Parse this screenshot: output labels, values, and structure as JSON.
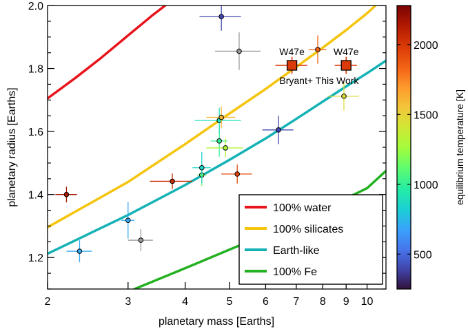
{
  "chart_data": {
    "type": "scatter",
    "xlabel": "planetary mass [Earths]",
    "ylabel": "planetary radius [Earths]",
    "xscale": "log",
    "xlim": [
      2,
      11
    ],
    "ylim": [
      1.1,
      2.0
    ],
    "xticks": [
      2,
      3,
      4,
      5,
      6,
      7,
      8,
      9,
      10
    ],
    "yticks": [
      1.2,
      1.4,
      1.6,
      1.8,
      2.0
    ],
    "grid": false,
    "legend_position": "bottom-right",
    "colorbar": {
      "label": "equilibrium temperature [K]",
      "range": [
        250,
        2280
      ],
      "ticks": [
        500,
        1000,
        1500,
        2000
      ],
      "colormap": "turbo"
    },
    "curves": [
      {
        "name": "100% water",
        "color": "#e8141c",
        "x": [
          2.0,
          2.3,
          2.6,
          3.0,
          3.4,
          3.85
        ],
        "y": [
          1.705,
          1.77,
          1.83,
          1.905,
          1.97,
          2.03
        ]
      },
      {
        "name": "100% silicates",
        "color": "#f5c40d",
        "x": [
          2.0,
          3.0,
          4.0,
          5.0,
          6.0,
          7.0,
          8.0,
          9.0,
          10.0,
          10.8
        ],
        "y": [
          1.296,
          1.44,
          1.56,
          1.657,
          1.735,
          1.805,
          1.866,
          1.922,
          1.975,
          2.02
        ]
      },
      {
        "name": "Earth-like",
        "color": "#15b2b5",
        "x": [
          2.0,
          3.0,
          4.0,
          5.0,
          6.0,
          7.0,
          8.0,
          9.0,
          10.0,
          11.0
        ],
        "y": [
          1.212,
          1.335,
          1.43,
          1.51,
          1.578,
          1.64,
          1.695,
          1.743,
          1.785,
          1.825
        ]
      },
      {
        "name": "100% Fe",
        "color": "#23b021",
        "x": [
          3.1,
          4.0,
          5.0,
          6.0,
          7.0,
          8.0,
          9.0,
          10.0,
          11.0
        ],
        "y": [
          1.1,
          1.166,
          1.225,
          1.273,
          1.315,
          1.352,
          1.388,
          1.42,
          1.475
        ]
      }
    ],
    "points": [
      {
        "x": 2.2,
        "y": 1.4,
        "xerr": 0.12,
        "yerr": 0.025,
        "teq": 2150
      },
      {
        "x": 2.35,
        "y": 1.22,
        "xerr": 0.15,
        "yerr": 0.035,
        "teq": 700
      },
      {
        "x": 3.0,
        "y": 1.318,
        "xerr": 0.1,
        "yerr": 0.058,
        "teq": 700
      },
      {
        "x": 3.2,
        "y": 1.255,
        "xerr": 0.2,
        "yerr": 0.035,
        "teq": null
      },
      {
        "x": 3.75,
        "y": 1.442,
        "xerr": 0.4,
        "yerr": 0.025,
        "teq": 2050
      },
      {
        "x": 4.35,
        "y": 1.462,
        "xerr": 0.1,
        "yerr": 0.035,
        "teq": 1150
      },
      {
        "x": 4.35,
        "y": 1.485,
        "xerr": 0.2,
        "yerr": 0.05,
        "teq": 850
      },
      {
        "x": 4.75,
        "y": 1.57,
        "xerr": 0.2,
        "yerr": 0.05,
        "teq": 1000
      },
      {
        "x": 4.75,
        "y": 1.635,
        "xerr": 0.55,
        "yerr": 0.04,
        "teq": 900
      },
      {
        "x": 4.8,
        "y": 1.645,
        "xerr": 0.35,
        "yerr": 0.035,
        "teq": 1600
      },
      {
        "x": 4.9,
        "y": 1.548,
        "xerr": 0.45,
        "yerr": 0.03,
        "teq": 1300
      },
      {
        "x": 4.8,
        "y": 1.965,
        "xerr": 0.5,
        "yerr": 0.045,
        "teq": 400
      },
      {
        "x": 5.2,
        "y": 1.465,
        "xerr": 0.4,
        "yerr": 0.03,
        "teq": 1950
      },
      {
        "x": 5.25,
        "y": 1.855,
        "xerr": 0.6,
        "yerr": 0.06,
        "teq": null
      },
      {
        "x": 6.4,
        "y": 1.605,
        "xerr": 0.5,
        "yerr": 0.045,
        "teq": 400
      },
      {
        "x": 7.8,
        "y": 1.86,
        "xerr": 0.35,
        "yerr": 0.045,
        "teq": 1850
      },
      {
        "x": 8.9,
        "y": 1.712,
        "xerr": 0.7,
        "yerr": 0.045,
        "teq": 1450
      }
    ],
    "highlighted": [
      {
        "x": 6.85,
        "y": 1.81,
        "xerr": 0.55,
        "yerr": 0.027,
        "teq": 1990,
        "label": "W47e"
      },
      {
        "x": 9.0,
        "y": 1.81,
        "xerr": 0.5,
        "yerr": 0.027,
        "teq": 1990,
        "label": "W47e"
      }
    ],
    "annotation": "Bryant+ This Work"
  }
}
